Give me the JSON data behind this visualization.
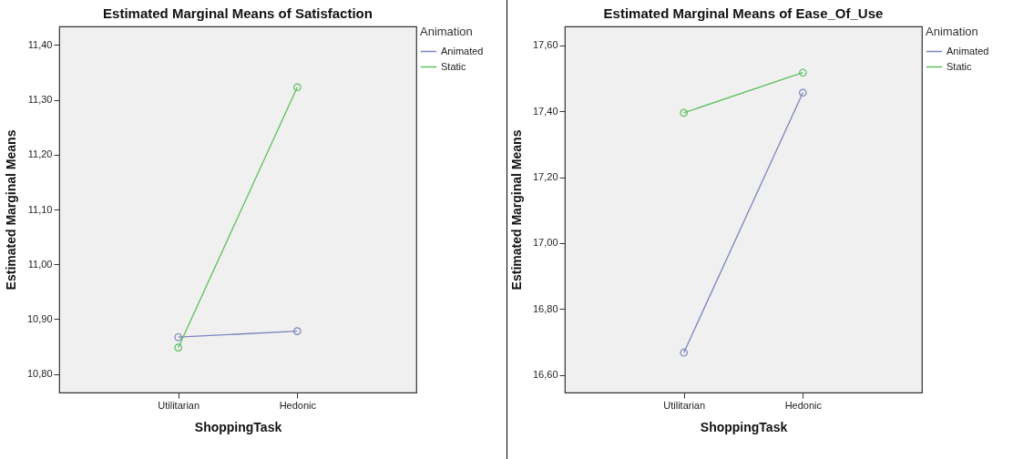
{
  "chart_data": [
    {
      "type": "line",
      "title": "Estimated Marginal Means of Satisfaction",
      "xlabel": "ShoppingTask",
      "ylabel": "Estimated Marginal Means",
      "legend_title": "Animation",
      "categories": [
        "Utilitarian",
        "Hedonic"
      ],
      "series": [
        {
          "name": "Animated",
          "color": "#7b85bd",
          "values": [
            10.867,
            10.878
          ]
        },
        {
          "name": "Static",
          "color": "#5cbf5c",
          "values": [
            10.848,
            11.323
          ]
        }
      ],
      "ylim": [
        10.766,
        11.434
      ],
      "yticks": [
        {
          "value": 10.8,
          "label": "10,80"
        },
        {
          "value": 10.9,
          "label": "10,90"
        },
        {
          "value": 11.0,
          "label": "11,00"
        },
        {
          "value": 11.1,
          "label": "11,10"
        },
        {
          "value": 11.2,
          "label": "11,20"
        },
        {
          "value": 11.3,
          "label": "11,30"
        },
        {
          "value": 11.4,
          "label": "11,40"
        }
      ],
      "grid": false,
      "legend": "top right",
      "marker": "circle"
    },
    {
      "type": "line",
      "title": "Estimated Marginal Means of Ease_Of_Use",
      "xlabel": "ShoppingTask",
      "ylabel": "Estimated Marginal Means",
      "legend_title": "Animation",
      "categories": [
        "Utilitarian",
        "Hedonic"
      ],
      "series": [
        {
          "name": "Animated",
          "color": "#7b85bd",
          "values": [
            16.668,
            17.456
          ]
        },
        {
          "name": "Static",
          "color": "#5cbf5c",
          "values": [
            17.395,
            17.517
          ]
        }
      ],
      "ylim": [
        16.547,
        17.657
      ],
      "yticks": [
        {
          "value": 16.6,
          "label": "16,60"
        },
        {
          "value": 16.8,
          "label": "16,80"
        },
        {
          "value": 17.0,
          "label": "17,00"
        },
        {
          "value": 17.2,
          "label": "17,20"
        },
        {
          "value": 17.4,
          "label": "17,40"
        },
        {
          "value": 17.6,
          "label": "17,60"
        }
      ],
      "grid": false,
      "legend": "top right",
      "marker": "circle"
    }
  ]
}
